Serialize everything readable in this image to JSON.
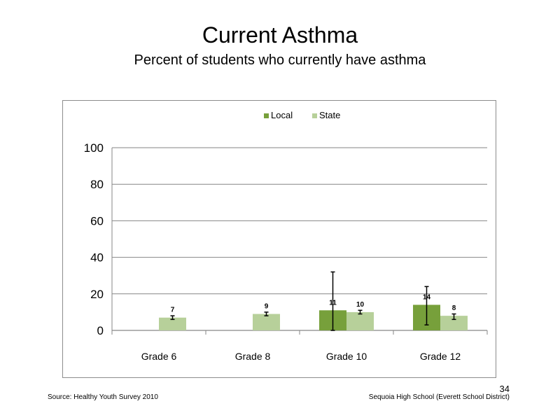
{
  "slide": {
    "title": "Current Asthma",
    "subtitle": "Percent of students who currently have asthma",
    "source": "Source: Healthy Youth Survey 2010",
    "school": "Sequoia High School (Everett School District)",
    "page_number": "34"
  },
  "colors": {
    "local": "#77a03b",
    "state": "#b7d09a",
    "gridline": "#868686",
    "errorbar": "#000000"
  },
  "chart_data": {
    "type": "bar",
    "categories": [
      "Grade 6",
      "Grade 8",
      "Grade 10",
      "Grade 12"
    ],
    "series": [
      {
        "name": "Local",
        "values": [
          null,
          null,
          11,
          14
        ],
        "labels": [
          "",
          "",
          "11",
          "14"
        ],
        "err_low": [
          null,
          null,
          0,
          3
        ],
        "err_high": [
          null,
          null,
          32,
          24
        ]
      },
      {
        "name": "State",
        "values": [
          7,
          9,
          10,
          8
        ],
        "labels": [
          "7",
          "9",
          "10",
          "8"
        ],
        "err_low": [
          6,
          8,
          9,
          6
        ],
        "err_high": [
          8,
          10,
          11,
          9
        ]
      }
    ],
    "yticks": [
      "0",
      "20",
      "40",
      "60",
      "80",
      "100"
    ],
    "ylim": [
      0,
      100
    ],
    "grid": true,
    "legend_position": "top"
  }
}
